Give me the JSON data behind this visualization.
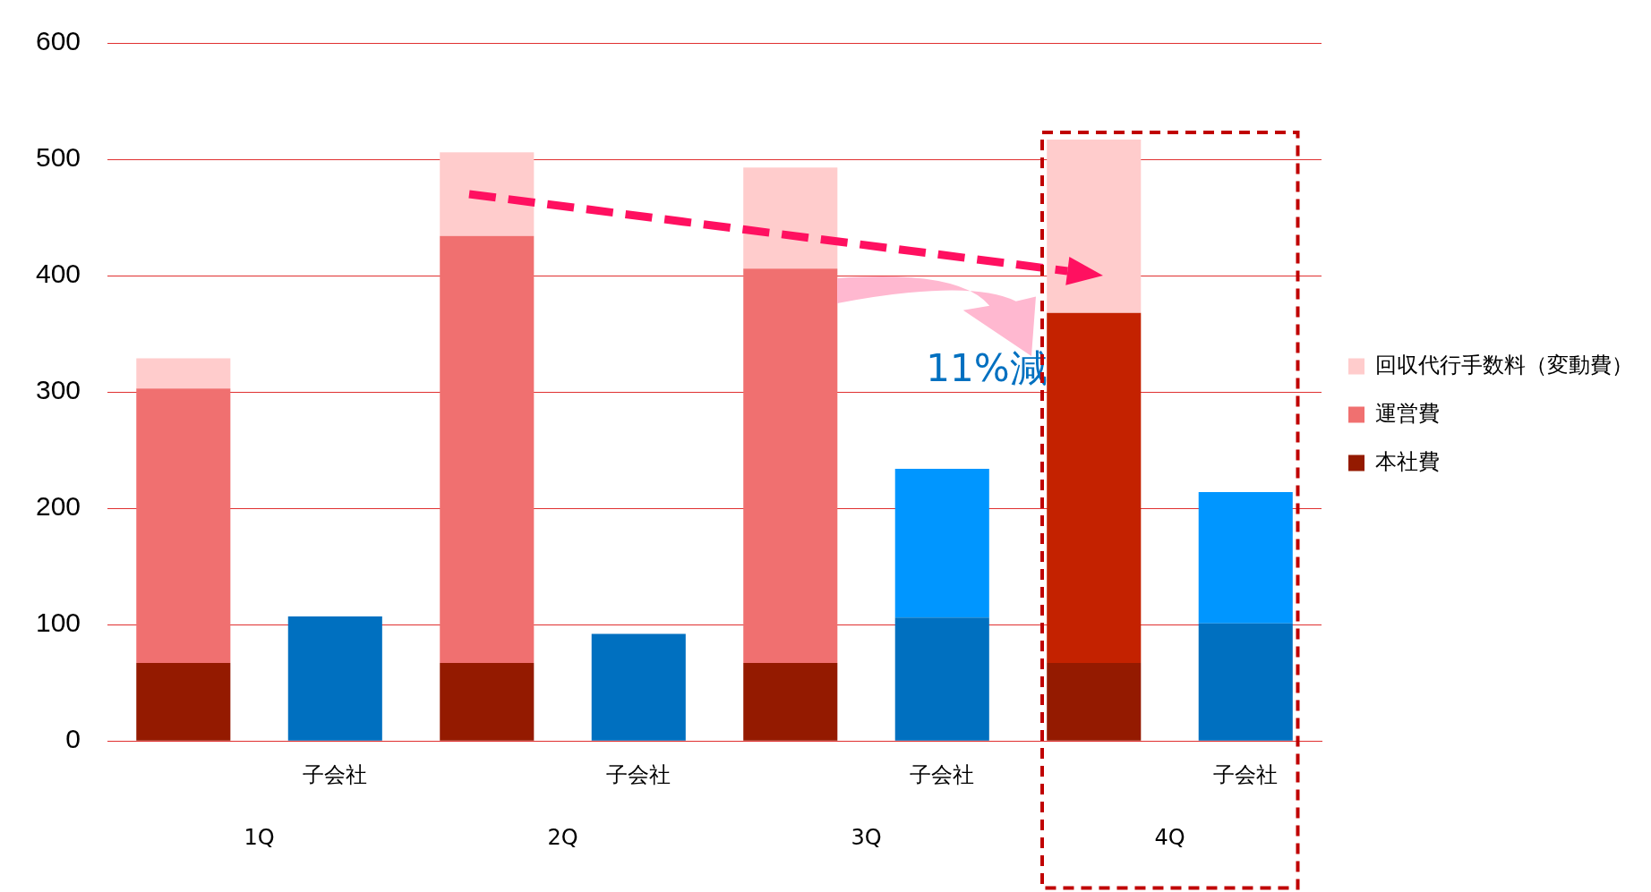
{
  "chart_data": {
    "type": "bar",
    "stacked": true,
    "categories": [
      null,
      "子会社",
      null,
      "子会社",
      null,
      "子会社",
      null,
      "子会社"
    ],
    "series": [
      {
        "name": "本社費",
        "color": "#941a00",
        "values": [
          67,
          null,
          67,
          null,
          67,
          null,
          67,
          null
        ]
      },
      {
        "name": "運営費",
        "color": "#f07070",
        "colors": [
          "#f07070",
          "#f07070",
          "#f07070",
          "#f07070",
          "#f07070",
          "#f07070",
          "#c42200",
          "#c42200"
        ],
        "values": [
          236,
          null,
          367,
          null,
          339,
          null,
          301,
          null
        ]
      },
      {
        "name": "回収代行手数料（変動費）",
        "color": "#ffcccc",
        "values": [
          26,
          null,
          72,
          null,
          87,
          null,
          149,
          null
        ]
      },
      {
        "color": "#0070c0",
        "values": [
          null,
          107,
          null,
          92,
          null,
          106,
          null,
          101
        ]
      },
      {
        "color": "#0096ff",
        "values": [
          null,
          null,
          null,
          null,
          null,
          128,
          null,
          113
        ]
      }
    ],
    "ylim": [
      0,
      600
    ],
    "yticks": [
      0,
      100,
      200,
      300,
      400,
      500,
      600
    ],
    "grid": "y",
    "legend": "right",
    "annotations": [
      "1Q",
      "2Q",
      "3Q",
      "4Q",
      "11%減"
    ]
  }
}
